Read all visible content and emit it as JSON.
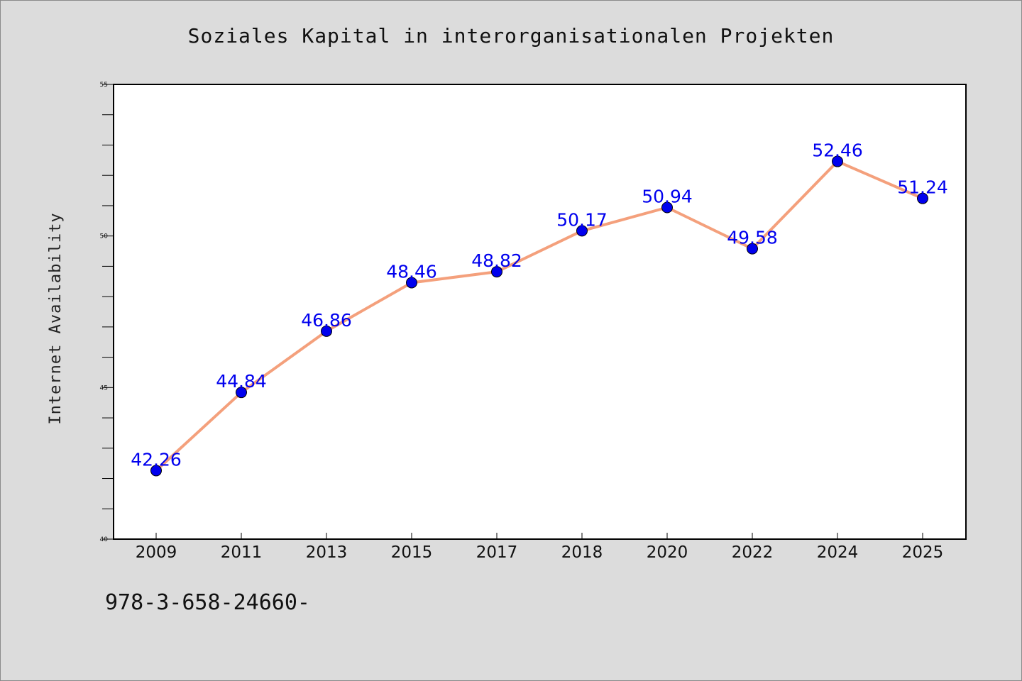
{
  "chart_data": {
    "type": "line",
    "title": "Soziales Kapital in interorganisationalen Projekten",
    "ylabel": "Internet Availability",
    "xlabel": "",
    "categories": [
      "2009",
      "2011",
      "2013",
      "2015",
      "2017",
      "2018",
      "2020",
      "2022",
      "2024",
      "2025"
    ],
    "series": [
      {
        "values": [
          42.26,
          44.84,
          46.86,
          48.46,
          48.82,
          50.17,
          50.94,
          49.58,
          52.46,
          51.24
        ],
        "labels": [
          "42.26",
          "44.84",
          "46.86",
          "48.46",
          "48.82",
          "50.17",
          "50.94",
          "49.58",
          "52.46",
          "51.24"
        ],
        "line_color": "#f4a07c",
        "marker_color": "#0000ee",
        "label_color": "#0000ee"
      }
    ],
    "ylim": [
      40,
      55
    ],
    "y_major_ticks": [
      40,
      45,
      50,
      55
    ],
    "y_major_tick_labels": [
      "40",
      "45",
      "50",
      "55"
    ],
    "y_minor_step": 1,
    "grid": false,
    "legend": "none",
    "background_color": "#dcdcdc",
    "plot_background_color": "#ffffff"
  },
  "footer": {
    "text": "978-3-658-24660-"
  }
}
